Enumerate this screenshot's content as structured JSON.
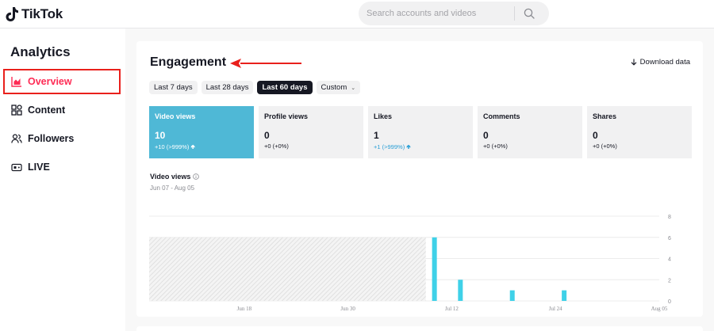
{
  "header": {
    "logo_text": "TikTok",
    "search_placeholder": "Search accounts and videos"
  },
  "sidebar": {
    "title": "Analytics",
    "items": [
      {
        "label": "Overview",
        "icon": "chart-bars-icon",
        "active": true
      },
      {
        "label": "Content",
        "icon": "grid-icon",
        "active": false
      },
      {
        "label": "Followers",
        "icon": "people-icon",
        "active": false
      },
      {
        "label": "LIVE",
        "icon": "live-camera-icon",
        "active": false
      }
    ]
  },
  "engagement": {
    "title": "Engagement",
    "download_label": "Download data",
    "ranges": [
      "Last 7 days",
      "Last 28 days",
      "Last 60 days",
      "Custom"
    ],
    "selected_range": "Last 60 days",
    "metrics": [
      {
        "label": "Video views",
        "value": "10",
        "change": "+10 (>999%)",
        "trend": "up",
        "active": true
      },
      {
        "label": "Profile views",
        "value": "0",
        "change": "+0 (+0%)",
        "trend": "none",
        "active": false
      },
      {
        "label": "Likes",
        "value": "1",
        "change": "+1 (>999%)",
        "trend": "up",
        "active": false
      },
      {
        "label": "Comments",
        "value": "0",
        "change": "+0 (+0%)",
        "trend": "none",
        "active": false
      },
      {
        "label": "Shares",
        "value": "0",
        "change": "+0 (+0%)",
        "trend": "none",
        "active": false
      }
    ],
    "chart_label": "Video views",
    "chart_range": "Jun 07 - Aug 05"
  },
  "colors": {
    "accent": "#fe2c55",
    "bar": "#3fd1e8",
    "metric_active": "#4fb8d6",
    "annotation_red": "#e9201c"
  },
  "chart_data": {
    "type": "bar",
    "title": "",
    "xlabel": "",
    "ylabel": "",
    "ylim": [
      0,
      8
    ],
    "yticks": [
      0,
      2,
      4,
      6,
      8
    ],
    "x_tick_labels": [
      "Jun 18",
      "Jun 30",
      "Jul 12",
      "Jul 24",
      "Aug 05"
    ],
    "x_range": [
      "Jun 07",
      "Aug 05"
    ],
    "no_data_period": [
      "Jun 07",
      "Jul 09"
    ],
    "series": [
      {
        "x": [
          "Jul 10",
          "Jul 13",
          "Jul 19",
          "Jul 25"
        ],
        "values": [
          6,
          2,
          1,
          1
        ]
      }
    ],
    "grid": true
  }
}
